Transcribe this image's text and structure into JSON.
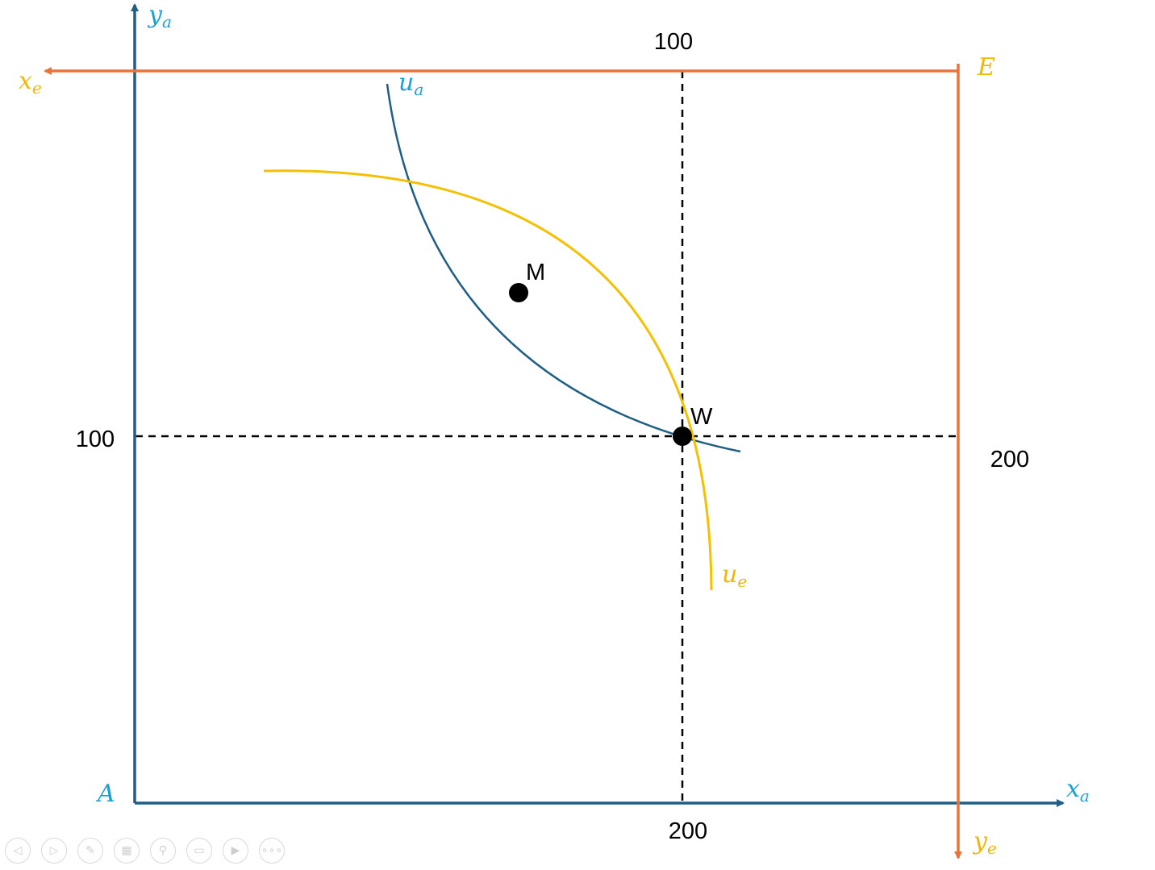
{
  "colors": {
    "axis_a": "#1f5f85",
    "label_a": "#1aa0d8",
    "axis_e": "#e8743b",
    "label_e": "#f2b705",
    "curve_ua": "#1f5f85",
    "curve_ue": "#f5c000",
    "guide": "#000000"
  },
  "diagram": {
    "origin_a": {
      "text": "A"
    },
    "origin_e": {
      "text": "E"
    },
    "axis_ya": {
      "base": "y",
      "sub": "a"
    },
    "axis_xa": {
      "base": "x",
      "sub": "a"
    },
    "axis_xe": {
      "base": "x",
      "sub": "e"
    },
    "axis_ye": {
      "base": "y",
      "sub": "e"
    },
    "curve_ua": {
      "base": "u",
      "sub": "a"
    },
    "curve_ue": {
      "base": "u",
      "sub": "e"
    },
    "tick_top": "100",
    "tick_left": "100",
    "tick_right": "200",
    "tick_bottom": "200",
    "point_m": "M",
    "point_w": "W"
  },
  "toolbar": {
    "buttons": [
      {
        "name": "previous-slide-button",
        "icon": "arrow-left-icon",
        "glyph": "◁"
      },
      {
        "name": "next-slide-button",
        "icon": "arrow-right-icon",
        "glyph": "▷"
      },
      {
        "name": "pen-button",
        "icon": "pen-icon",
        "glyph": "✎"
      },
      {
        "name": "slides-overview-button",
        "icon": "grid-icon",
        "glyph": "▦"
      },
      {
        "name": "zoom-button",
        "icon": "magnifier-icon",
        "glyph": "⚲"
      },
      {
        "name": "subtitles-button",
        "icon": "subtitles-icon",
        "glyph": "▭"
      },
      {
        "name": "camera-button",
        "icon": "camera-off-icon",
        "glyph": "▶"
      },
      {
        "name": "more-options-button",
        "icon": "ellipsis-icon",
        "glyph": "∘∘∘"
      }
    ]
  }
}
